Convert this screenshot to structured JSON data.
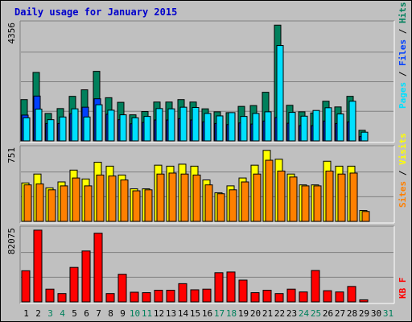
{
  "title": "Daily usage for January 2015",
  "colors": {
    "hits": "#00805c",
    "files": "#0040ff",
    "pages": "#00e0ff",
    "visits": "#ffff00",
    "sites": "#ff8000",
    "kbytes": "#ff0000",
    "weekday_label": "#000000",
    "weekend_label": "#00805c",
    "plot_bg": "#c0c0c0",
    "grid": "#808080"
  },
  "legend_top": [
    {
      "label": "Pages",
      "color": "#00e0ff"
    },
    {
      "label": "Files",
      "color": "#0040ff"
    },
    {
      "label": "Hits",
      "color": "#00805c"
    }
  ],
  "legend_mid": [
    {
      "label": "Sites",
      "color": "#ff8000"
    },
    {
      "label": "Visits",
      "color": "#ffff00"
    }
  ],
  "legend_bot": [
    {
      "label": "KB F",
      "color": "#ff0000"
    }
  ],
  "chart_data": {
    "type": "bar",
    "x": [
      1,
      2,
      3,
      4,
      5,
      6,
      7,
      8,
      9,
      10,
      11,
      12,
      13,
      14,
      15,
      16,
      17,
      18,
      19,
      20,
      21,
      22,
      23,
      24,
      25,
      26,
      27,
      28,
      29,
      30,
      31
    ],
    "weekend_days": [
      3,
      4,
      10,
      11,
      17,
      18,
      24,
      25,
      31
    ],
    "panels": [
      {
        "name": "top",
        "ymax": 4356,
        "ymax_label": "4356",
        "series": [
          {
            "name": "Hits",
            "values": [
              1520,
              2520,
              1010,
              1190,
              1640,
              1880,
              2560,
              1590,
              1420,
              960,
              1080,
              1430,
              1430,
              1520,
              1430,
              1180,
              1070,
              1040,
              1270,
              1300,
              1790,
              4260,
              1310,
              1070,
              1030,
              1460,
              1250,
              1640,
              390,
              0,
              0
            ]
          },
          {
            "name": "Files",
            "values": [
              950,
              1650,
              640,
              640,
              1000,
              1240,
              1550,
              980,
              780,
              630,
              680,
              770,
              770,
              820,
              770,
              700,
              640,
              600,
              660,
              620,
              730,
              860,
              650,
              560,
              560,
              730,
              640,
              700,
              160,
              0,
              0
            ]
          },
          {
            "name": "Pages",
            "values": [
              850,
              1170,
              780,
              880,
              1180,
              880,
              1330,
              1130,
              960,
              850,
              900,
              1190,
              1180,
              1240,
              1230,
              1010,
              920,
              1040,
              900,
              1010,
              1070,
              3510,
              1050,
              910,
              1120,
              1220,
              990,
              1460,
              320,
              0,
              0
            ]
          }
        ]
      },
      {
        "name": "middle",
        "ymax": 751,
        "ymax_label": "751",
        "series": [
          {
            "name": "Visits",
            "values": [
              390,
              480,
              340,
              400,
              520,
              430,
              600,
              560,
              470,
              330,
              330,
              570,
              560,
              580,
              560,
              420,
              290,
              360,
              440,
              570,
              720,
              630,
              480,
              370,
              370,
              610,
              560,
              560,
              110,
              0,
              0
            ]
          },
          {
            "name": "Sites",
            "values": [
              370,
              380,
              320,
              360,
              440,
              360,
              470,
              460,
              420,
              310,
              320,
              480,
              490,
              480,
              470,
              370,
              280,
              320,
              400,
              480,
              620,
              510,
              450,
              360,
              360,
              510,
              480,
              490,
              100,
              0,
              0
            ]
          }
        ]
      },
      {
        "name": "bottom",
        "ymax": 82075,
        "ymax_label": "82075",
        "series": [
          {
            "name": "KBytes",
            "values": [
              34500,
              79500,
              14100,
              9200,
              38200,
              56400,
              76100,
              9200,
              30600,
              10700,
              10200,
              12900,
              12900,
              20200,
              13400,
              14100,
              32300,
              33100,
              24100,
              10200,
              12900,
              9200,
              14100,
              11000,
              34800,
              12400,
              11000,
              17100,
              2300,
              0,
              0
            ]
          }
        ]
      }
    ]
  }
}
